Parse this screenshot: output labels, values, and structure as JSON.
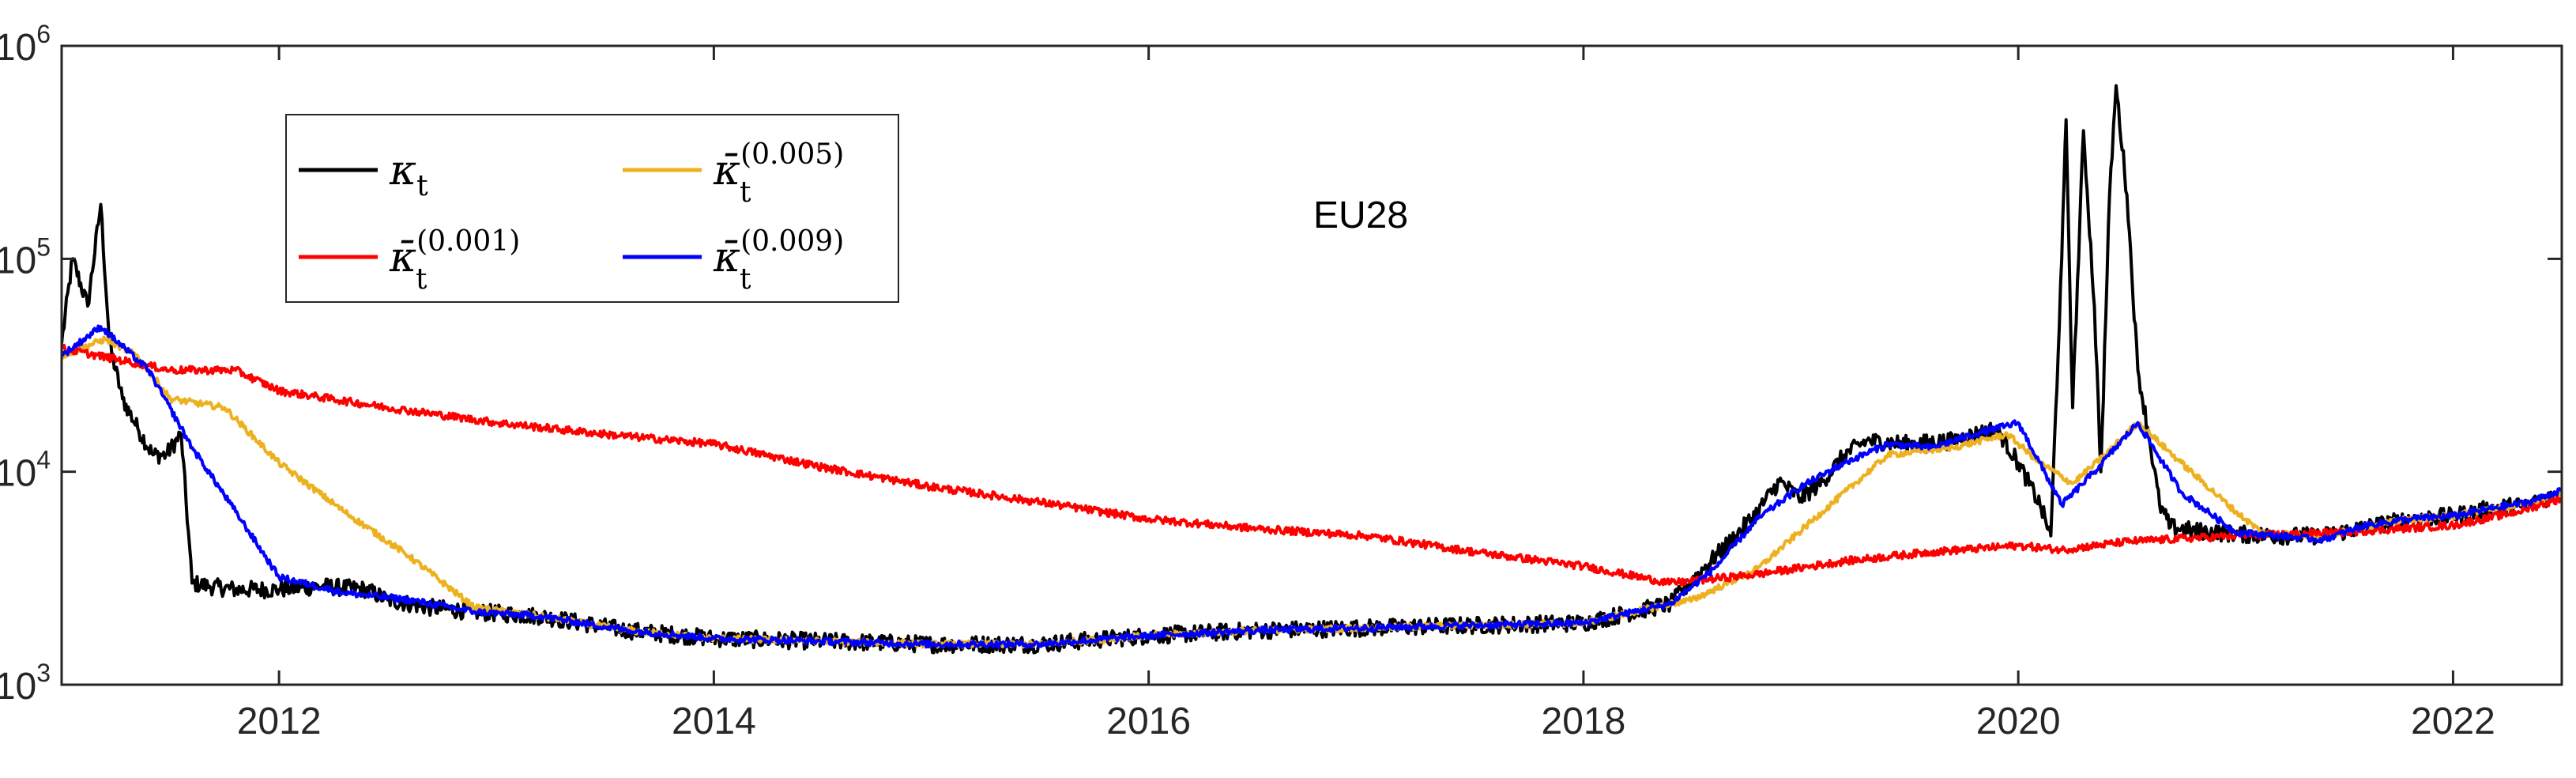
{
  "chart_data": {
    "type": "line",
    "title": "",
    "xlabel": "",
    "ylabel": "",
    "annotation": "EU28",
    "yscale": "log",
    "xlim": [
      2011.0,
      2022.5
    ],
    "ylim": [
      1000,
      1000000
    ],
    "x_ticks": [
      2012,
      2014,
      2016,
      2018,
      2020,
      2022
    ],
    "x_tick_labels": [
      "2012",
      "2014",
      "2016",
      "2018",
      "2020",
      "2022"
    ],
    "y_ticks": [
      {
        "value": 1000,
        "base": "10",
        "exp": "3"
      },
      {
        "value": 10000,
        "base": "10",
        "exp": "4"
      },
      {
        "value": 100000,
        "base": "10",
        "exp": "5"
      },
      {
        "value": 1000000,
        "base": "10",
        "exp": "6"
      }
    ],
    "grid": false,
    "legend_position": "top-left",
    "series": [
      {
        "name": "κt",
        "legend_main": "κ",
        "legend_sub": "t",
        "legend_sup": "",
        "color": "#000000",
        "jitter": 0.08,
        "x": [
          2011.0,
          2011.05,
          2011.12,
          2011.18,
          2011.22,
          2011.28,
          2011.35,
          2011.42,
          2011.48,
          2011.55,
          2011.6,
          2011.68,
          2011.8,
          2012.0,
          2012.2,
          2012.4,
          2012.5,
          2012.7,
          2012.9,
          2013.2,
          2013.6,
          2014.0,
          2014.5,
          2015.0,
          2015.5,
          2016.0,
          2016.5,
          2017.0,
          2017.5,
          2018.0,
          2018.4,
          2018.55,
          2018.7,
          2018.8,
          2018.9,
          2019.0,
          2019.1,
          2019.2,
          2019.3,
          2019.5,
          2019.7,
          2019.9,
          2020.0,
          2020.1,
          2020.15,
          2020.2,
          2020.22,
          2020.25,
          2020.3,
          2020.35,
          2020.38,
          2020.42,
          2020.45,
          2020.5,
          2020.55,
          2020.6,
          2020.65,
          2020.7,
          2020.8,
          2020.9,
          2021.0,
          2021.2,
          2021.4,
          2021.6,
          2021.8,
          2022.0,
          2022.2,
          2022.35,
          2022.5
        ],
        "y": [
          40000,
          100000,
          60000,
          180000,
          40000,
          22000,
          16000,
          12000,
          12000,
          15000,
          3000,
          2900,
          2800,
          2800,
          2900,
          2800,
          2500,
          2300,
          2200,
          2100,
          1800,
          1650,
          1600,
          1550,
          1550,
          1700,
          1800,
          1850,
          1900,
          1950,
          2400,
          3500,
          5000,
          6500,
          9000,
          7500,
          9000,
          12000,
          14000,
          13500,
          14000,
          16000,
          11000,
          7000,
          5000,
          100000,
          450000,
          20000,
          400000,
          60000,
          10000,
          200000,
          650000,
          200000,
          30000,
          15000,
          7000,
          5500,
          5300,
          5200,
          5100,
          5000,
          5000,
          5500,
          6000,
          6200,
          6800,
          7000,
          8000
        ]
      },
      {
        "name": "κ̄t(0.005)",
        "legend_main": "κ̄",
        "legend_sub": "t",
        "legend_sup": "(0.005)",
        "color": "#edb120",
        "jitter": 0.03,
        "x": [
          2011.0,
          2011.2,
          2011.35,
          2011.5,
          2011.75,
          2012.0,
          2012.3,
          2012.6,
          2012.9,
          2013.2,
          2013.6,
          2014.0,
          2014.5,
          2015.0,
          2015.5,
          2016.0,
          2016.5,
          2017.0,
          2017.5,
          2018.0,
          2018.4,
          2018.5,
          2018.8,
          2019.1,
          2019.4,
          2019.7,
          2019.95,
          2020.1,
          2020.25,
          2020.4,
          2020.55,
          2020.75,
          2021.0,
          2021.12,
          2021.4,
          2021.6,
          2021.8,
          2022.0,
          2022.2,
          2022.35,
          2022.5
        ],
        "y": [
          35000,
          42000,
          35000,
          22000,
          20000,
          11000,
          6500,
          4000,
          2300,
          2100,
          1800,
          1650,
          1600,
          1550,
          1550,
          1700,
          1800,
          1850,
          1900,
          1950,
          2400,
          2500,
          3500,
          6500,
          12000,
          13000,
          15000,
          11000,
          8800,
          12000,
          17000,
          11000,
          6500,
          5200,
          5000,
          5500,
          6000,
          6200,
          6800,
          7000,
          8000
        ]
      },
      {
        "name": "κ̄t(0.001)",
        "legend_main": "κ̄",
        "legend_sub": "t",
        "legend_sup": "(0.001)",
        "color": "#ff0000",
        "jitter": 0.035,
        "x": [
          2011.0,
          2011.5,
          2011.8,
          2012.0,
          2012.5,
          2013.0,
          2013.5,
          2014.0,
          2014.5,
          2015.0,
          2015.5,
          2016.0,
          2016.5,
          2017.0,
          2017.5,
          2018.0,
          2018.4,
          2018.8,
          2019.2,
          2019.6,
          2020.0,
          2020.2,
          2020.5,
          2021.0,
          2021.5,
          2022.0,
          2022.3,
          2022.5
        ],
        "y": [
          38000,
          30000,
          30000,
          24000,
          20000,
          17000,
          15000,
          13500,
          10500,
          8500,
          7200,
          6000,
          5400,
          5000,
          4200,
          3600,
          3000,
          3300,
          3800,
          4200,
          4500,
          4300,
          4700,
          5000,
          5200,
          5600,
          6500,
          7500
        ]
      },
      {
        "name": "κ̄t(0.009)",
        "legend_main": "κ̄",
        "legend_sub": "t",
        "legend_sup": "(0.009)",
        "color": "#0000ff",
        "jitter": 0.03,
        "x": [
          2011.0,
          2011.18,
          2011.4,
          2011.6,
          2011.8,
          2012.0,
          2012.3,
          2012.6,
          2012.9,
          2013.2,
          2013.6,
          2014.0,
          2014.5,
          2015.0,
          2015.5,
          2016.0,
          2016.5,
          2017.0,
          2017.5,
          2018.0,
          2018.4,
          2018.6,
          2018.8,
          2019.0,
          2019.2,
          2019.4,
          2019.6,
          2019.8,
          2020.0,
          2020.2,
          2020.35,
          2020.55,
          2020.75,
          2021.0,
          2021.2,
          2021.4,
          2021.6,
          2021.8,
          2022.0,
          2022.2,
          2022.35,
          2022.5
        ],
        "y": [
          35000,
          48000,
          30000,
          13000,
          6500,
          3200,
          2700,
          2500,
          2200,
          2100,
          1800,
          1650,
          1600,
          1550,
          1550,
          1700,
          1800,
          1850,
          1900,
          1950,
          2400,
          3500,
          6000,
          8500,
          11000,
          13500,
          13000,
          15000,
          17000,
          7000,
          10000,
          17000,
          8000,
          5200,
          5000,
          4800,
          5600,
          6000,
          6200,
          6800,
          7200,
          8200
        ]
      }
    ]
  }
}
